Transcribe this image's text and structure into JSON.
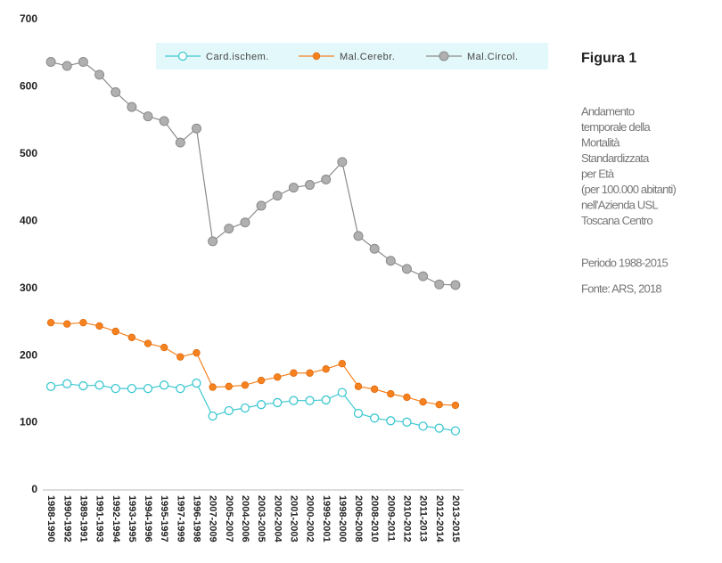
{
  "chart_data": {
    "type": "line",
    "title": "Figura 1",
    "description": [
      "Andamento",
      "temporale della",
      "Mortalità",
      "Standardizzata",
      "per Età",
      "(per 100.000 abitanti)",
      "nell'Azienda USL",
      "Toscana Centro"
    ],
    "period": "Periodo 1988-2015",
    "source": "Fonte: ARS, 2018",
    "categories": [
      "1988-1990",
      "1990-1992",
      "1989-1991",
      "1991-1993",
      "1992-1994",
      "1993-1995",
      "1994-1996",
      "1995-1997",
      "1997-1999",
      "1996-1998",
      "2007-2009",
      "2005-2007",
      "2004-2006",
      "2003-2005",
      "2002-2004",
      "2001-2003",
      "2000-2002",
      "1999-2001",
      "1998-2000",
      "2006-2008",
      "2008-2010",
      "2009-2011",
      "2010-2012",
      "2011-2013",
      "2012-2014",
      "2013-2015"
    ],
    "series": [
      {
        "name": "Card.ischem.",
        "color": "#3cc8d0",
        "values": [
          154,
          158,
          155,
          156,
          151,
          151,
          151,
          156,
          151,
          159,
          110,
          118,
          122,
          127,
          130,
          133,
          133,
          134,
          145,
          114,
          107,
          103,
          101,
          95,
          92,
          88
        ]
      },
      {
        "name": "Mal.Cerebr.",
        "color": "#f5821f",
        "values": [
          249,
          247,
          249,
          244,
          236,
          227,
          218,
          212,
          198,
          204,
          153,
          154,
          156,
          163,
          168,
          174,
          174,
          180,
          188,
          154,
          150,
          143,
          138,
          131,
          127,
          126
        ]
      },
      {
        "name": "Mal.Circol.",
        "color": "#9e9e9e",
        "values": [
          637,
          631,
          637,
          618,
          592,
          570,
          556,
          549,
          517,
          538,
          370,
          389,
          398,
          423,
          438,
          450,
          454,
          462,
          488,
          378,
          359,
          341,
          329,
          318,
          306,
          305
        ]
      }
    ],
    "ylim": [
      0,
      700
    ],
    "yticks": [
      0,
      100,
      200,
      300,
      400,
      500,
      600,
      700
    ],
    "grid": false,
    "legend": "top"
  }
}
